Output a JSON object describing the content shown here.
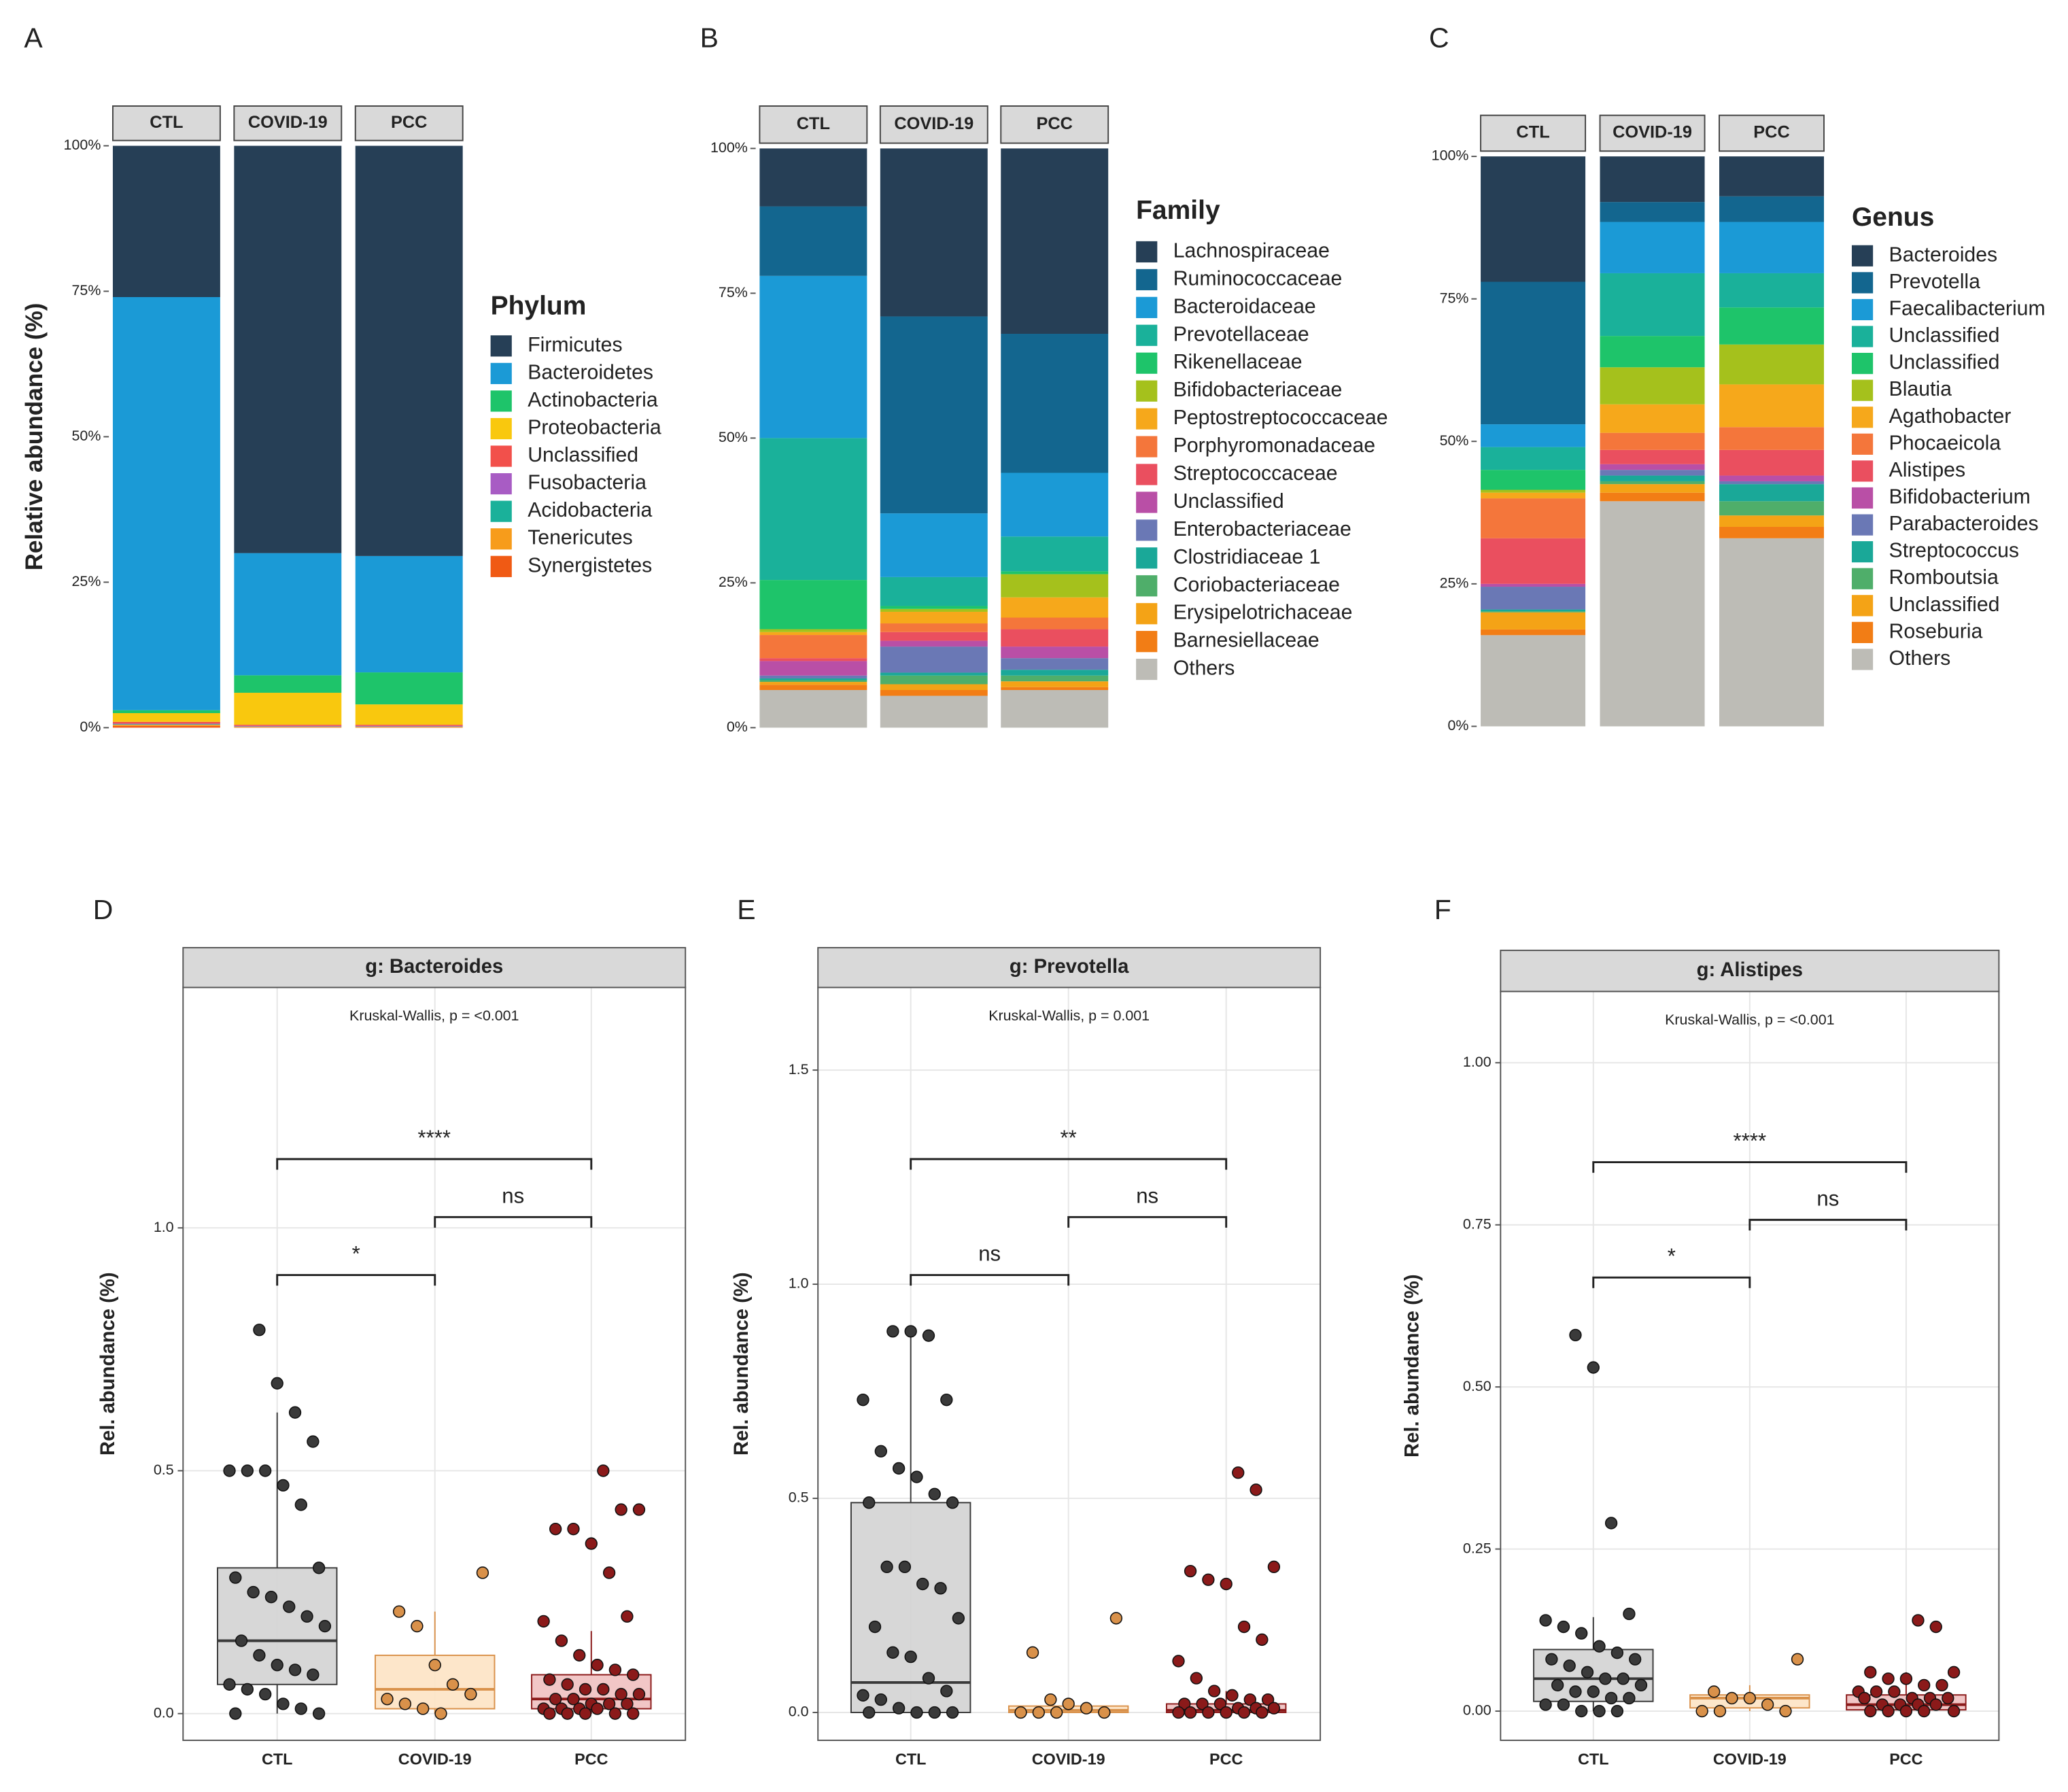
{
  "chart_data": [
    {
      "type": "stacked_bar",
      "label": "A",
      "ylabel": "Relative abundance (%)",
      "legend_title": "Phylum",
      "categories": [
        "CTL",
        "COVID-19",
        "PCC"
      ],
      "ylim": [
        0,
        100
      ],
      "yticks": [
        {
          "value": 0,
          "label": "0%"
        },
        {
          "value": 25,
          "label": "25%"
        },
        {
          "value": 50,
          "label": "50%"
        },
        {
          "value": 75,
          "label": "75%"
        },
        {
          "value": 100,
          "label": "100%"
        }
      ],
      "series": [
        {
          "name": "Firmicutes",
          "color": "#263f56",
          "values": [
            26,
            70,
            70.5
          ]
        },
        {
          "name": "Bacteroidetes",
          "color": "#1b9ad6",
          "values": [
            71,
            21,
            20
          ]
        },
        {
          "name": "Actinobacteria",
          "color": "#1ec46a",
          "values": [
            0.5,
            3,
            5.5
          ]
        },
        {
          "name": "Proteobacteria",
          "color": "#f9c80e",
          "values": [
            1.5,
            5.5,
            3.5
          ]
        },
        {
          "name": "Unclassified",
          "color": "#f2504b",
          "values": [
            0.3,
            0.2,
            0.2
          ]
        },
        {
          "name": "Fusobacteria",
          "color": "#a85cc4",
          "values": [
            0.1,
            0.1,
            0.1
          ]
        },
        {
          "name": "Acidobacteria",
          "color": "#1ab19a",
          "values": [
            0.1,
            0.05,
            0.05
          ]
        },
        {
          "name": "Tenericutes",
          "color": "#f79c1b",
          "values": [
            0.2,
            0.1,
            0.1
          ]
        },
        {
          "name": "Synergistetes",
          "color": "#f05a14",
          "values": [
            0.3,
            0.05,
            0.05
          ]
        }
      ]
    },
    {
      "type": "stacked_bar",
      "label": "B",
      "legend_title": "Family",
      "categories": [
        "CTL",
        "COVID-19",
        "PCC"
      ],
      "ylim": [
        0,
        100
      ],
      "yticks": [
        {
          "value": 0,
          "label": "0%"
        },
        {
          "value": 25,
          "label": "25%"
        },
        {
          "value": 50,
          "label": "50%"
        },
        {
          "value": 75,
          "label": "75%"
        },
        {
          "value": 100,
          "label": "100%"
        }
      ],
      "series": [
        {
          "name": "Lachnospiraceae",
          "color": "#263f56",
          "values": [
            10,
            29,
            32
          ]
        },
        {
          "name": "Ruminococcaceae",
          "color": "#13668f",
          "values": [
            12,
            34,
            24
          ]
        },
        {
          "name": "Bacteroidaceae",
          "color": "#1b9ad6",
          "values": [
            28,
            11,
            11
          ]
        },
        {
          "name": "Prevotellaceae",
          "color": "#1ab19a",
          "values": [
            24.5,
            5,
            6
          ]
        },
        {
          "name": "Rikenellaceae",
          "color": "#1ec46a",
          "values": [
            8.5,
            0.5,
            0.5
          ]
        },
        {
          "name": "Bifidobacteriaceae",
          "color": "#a5c11c",
          "values": [
            0.5,
            0.5,
            4
          ]
        },
        {
          "name": "Peptostreptococcaceae",
          "color": "#f6a81b",
          "values": [
            0.5,
            2,
            3.5
          ]
        },
        {
          "name": "Porphyromonadaceae",
          "color": "#f4763b",
          "values": [
            4,
            1.5,
            2
          ]
        },
        {
          "name": "Streptococcaceae",
          "color": "#ea4f5f",
          "values": [
            0.5,
            1.5,
            3
          ]
        },
        {
          "name": "Unclassified",
          "color": "#b94fa6",
          "values": [
            2.5,
            1,
            2
          ]
        },
        {
          "name": "Enterobacteriaceae",
          "color": "#6a78b5",
          "values": [
            0.5,
            4.5,
            2
          ]
        },
        {
          "name": "Clostridiaceae 1",
          "color": "#1aa898",
          "values": [
            0.3,
            0.5,
            1
          ]
        },
        {
          "name": "Coriobacteriaceae",
          "color": "#4fae6a",
          "values": [
            0.3,
            1.5,
            1
          ]
        },
        {
          "name": "Erysipelotrichaceae",
          "color": "#f4a316",
          "values": [
            0.5,
            1,
            1
          ]
        },
        {
          "name": "Barnesiellaceae",
          "color": "#f27d15",
          "values": [
            0.9,
            1,
            0.5
          ]
        },
        {
          "name": "Others",
          "color": "#bdbcb6",
          "values": [
            6.5,
            5.5,
            6.5
          ]
        }
      ]
    },
    {
      "type": "stacked_bar",
      "label": "C",
      "legend_title": "Genus",
      "categories": [
        "CTL",
        "COVID-19",
        "PCC"
      ],
      "ylim": [
        0,
        100
      ],
      "yticks": [
        {
          "value": 0,
          "label": "0%"
        },
        {
          "value": 25,
          "label": "25%"
        },
        {
          "value": 50,
          "label": "50%"
        },
        {
          "value": 75,
          "label": "75%"
        },
        {
          "value": 100,
          "label": "100%"
        }
      ],
      "series": [
        {
          "name": "Bacteroides",
          "color": "#263f56",
          "values": [
            22,
            8,
            7
          ]
        },
        {
          "name": "Prevotella",
          "color": "#13668f",
          "values": [
            25,
            3.5,
            4.5
          ]
        },
        {
          "name": "Faecalibacterium",
          "color": "#1b9ad6",
          "values": [
            4,
            9,
            9
          ]
        },
        {
          "name": "Unclassified",
          "color": "#1ab19a",
          "values": [
            4,
            11,
            6
          ]
        },
        {
          "name": "Unclassified",
          "color": "#1ec46a",
          "values": [
            3.5,
            5.5,
            6.5
          ]
        },
        {
          "name": "Blautia",
          "color": "#a5c11c",
          "values": [
            0.5,
            6.5,
            7
          ]
        },
        {
          "name": "Agathobacter",
          "color": "#f6a81b",
          "values": [
            1,
            5,
            7.5
          ]
        },
        {
          "name": "Phocaeicola",
          "color": "#f4763b",
          "values": [
            7,
            3,
            4
          ]
        },
        {
          "name": "Alistipes",
          "color": "#ea4f5f",
          "values": [
            8,
            2.5,
            4.5
          ]
        },
        {
          "name": "Bifidobacterium",
          "color": "#b94fa6",
          "values": [
            0.5,
            1,
            1
          ]
        },
        {
          "name": "Parabacteroides",
          "color": "#6a78b5",
          "values": [
            4,
            1,
            0.5
          ]
        },
        {
          "name": "Streptococcus",
          "color": "#1aa898",
          "values": [
            0.3,
            1,
            3
          ]
        },
        {
          "name": "Romboutsia",
          "color": "#4fae6a",
          "values": [
            0.2,
            0.5,
            2.5
          ]
        },
        {
          "name": "Unclassified",
          "color": "#f4a316",
          "values": [
            3,
            1.5,
            2
          ]
        },
        {
          "name": "Roseburia",
          "color": "#f27d15",
          "values": [
            1,
            1.5,
            2
          ]
        },
        {
          "name": "Others",
          "color": "#bdbcb6",
          "values": [
            16,
            39.5,
            33
          ]
        }
      ]
    },
    {
      "type": "box",
      "label": "D",
      "title": "g: Bacteroides",
      "subtitle": "Kruskal-Wallis, p = <0.001",
      "ylabel": "Rel. abundance (%)",
      "categories": [
        "CTL",
        "COVID-19",
        "PCC"
      ],
      "colors": [
        "#3a3a3a",
        "#d9914a",
        "#8b1a1a"
      ],
      "fills": [
        "#d3d3d3",
        "#fde3c4",
        "#f0c0c0"
      ],
      "ylim": [
        -0.055,
        1.495
      ],
      "yticks": [
        {
          "value": 0,
          "label": "0.0"
        },
        0.5,
        {
          "value": 1,
          "label": "1.0"
        }
      ],
      "boxes": [
        {
          "min": 0,
          "q1": 0.06,
          "median": 0.15,
          "q3": 0.3,
          "max": 0.62
        },
        {
          "min": 0,
          "q1": 0.01,
          "median": 0.05,
          "q3": 0.12,
          "max": 0.21
        },
        {
          "min": 0,
          "q1": 0.01,
          "median": 0.03,
          "q3": 0.08,
          "max": 0.17
        }
      ],
      "points": [
        [
          0.79,
          0.68,
          0.62,
          0.56,
          0.5,
          0.5,
          0.5,
          0.47,
          0.43,
          0.3,
          0.28,
          0.25,
          0.24,
          0.22,
          0.2,
          0.18,
          0.15,
          0.12,
          0.1,
          0.09,
          0.08,
          0.06,
          0.05,
          0.04,
          0.02,
          0.01,
          0,
          0
        ],
        [
          0.29,
          0.21,
          0.18,
          0.1,
          0.06,
          0.04,
          0.03,
          0.02,
          0.01,
          0
        ],
        [
          0.5,
          0.42,
          0.42,
          0.38,
          0.38,
          0.35,
          0.29,
          0.2,
          0.19,
          0.15,
          0.12,
          0.1,
          0.09,
          0.08,
          0.07,
          0.06,
          0.05,
          0.05,
          0.04,
          0.04,
          0.03,
          0.03,
          0.02,
          0.02,
          0.02,
          0.01,
          0.01,
          0.01,
          0.01,
          0,
          0,
          0,
          0,
          0
        ]
      ],
      "comparisons": [
        {
          "groups": [
            "CTL",
            "COVID-19"
          ],
          "label": "*"
        },
        {
          "groups": [
            "COVID-19",
            "PCC"
          ],
          "label": "ns"
        },
        {
          "groups": [
            "CTL",
            "PCC"
          ],
          "label": "****"
        }
      ]
    },
    {
      "type": "box",
      "label": "E",
      "title": "g: Prevotella",
      "subtitle": "Kruskal-Wallis, p = 0.001",
      "ylabel": "Rel. abundance (%)",
      "categories": [
        "CTL",
        "COVID-19",
        "PCC"
      ],
      "colors": [
        "#3a3a3a",
        "#d9914a",
        "#8b1a1a"
      ],
      "fills": [
        "#d3d3d3",
        "#fde3c4",
        "#f0c0c0"
      ],
      "ylim": [
        -0.065,
        1.693
      ],
      "yticks": [
        {
          "value": 0,
          "label": "0.0"
        },
        0.5,
        {
          "value": 1,
          "label": "1.0"
        },
        1.5
      ],
      "boxes": [
        {
          "min": 0,
          "q1": 0,
          "median": 0.07,
          "q3": 0.49,
          "max": 0.89
        },
        {
          "min": 0,
          "q1": 0,
          "median": 0.005,
          "q3": 0.015,
          "max": 0.03
        },
        {
          "min": 0,
          "q1": 0,
          "median": 0.005,
          "q3": 0.02,
          "max": 0.05
        }
      ],
      "points": [
        [
          0.89,
          0.89,
          0.88,
          0.73,
          0.73,
          0.61,
          0.57,
          0.55,
          0.51,
          0.49,
          0.49,
          0.34,
          0.34,
          0.3,
          0.29,
          0.22,
          0.2,
          0.14,
          0.13,
          0.08,
          0.05,
          0.04,
          0.03,
          0.01,
          0,
          0,
          0,
          0
        ],
        [
          0.22,
          0.14,
          0.03,
          0.02,
          0.01,
          0,
          0,
          0,
          0
        ],
        [
          0.56,
          0.52,
          0.34,
          0.33,
          0.31,
          0.3,
          0.2,
          0.17,
          0.12,
          0.08,
          0.05,
          0.04,
          0.03,
          0.03,
          0.02,
          0.02,
          0.02,
          0.01,
          0.01,
          0.01,
          0,
          0,
          0,
          0,
          0,
          0
        ]
      ],
      "comparisons": [
        {
          "groups": [
            "CTL",
            "COVID-19"
          ],
          "label": "ns"
        },
        {
          "groups": [
            "COVID-19",
            "PCC"
          ],
          "label": "ns"
        },
        {
          "groups": [
            "CTL",
            "PCC"
          ],
          "label": "**"
        }
      ]
    },
    {
      "type": "box",
      "label": "F",
      "title": "g: Alistipes",
      "subtitle": "Kruskal-Wallis, p = <0.001",
      "ylabel": "Rel. abundance (%)",
      "categories": [
        "CTL",
        "COVID-19",
        "PCC"
      ],
      "colors": [
        "#3a3a3a",
        "#d9914a",
        "#8b1a1a"
      ],
      "fills": [
        "#d3d3d3",
        "#fde3c4",
        "#f0c0c0"
      ],
      "ylim": [
        -0.045,
        1.11
      ],
      "yticks": [
        {
          "value": 0,
          "label": "0.00"
        },
        0.25,
        {
          "value": 0.5,
          "label": "0.50"
        },
        0.75,
        {
          "value": 1,
          "label": "1.00"
        }
      ],
      "boxes": [
        {
          "min": 0,
          "q1": 0.015,
          "median": 0.05,
          "q3": 0.095,
          "max": 0.145
        },
        {
          "min": 0,
          "q1": 0.005,
          "median": 0.02,
          "q3": 0.025,
          "max": 0.04
        },
        {
          "min": 0,
          "q1": 0.002,
          "median": 0.01,
          "q3": 0.025,
          "max": 0.06
        }
      ],
      "points": [
        [
          0.58,
          0.53,
          0.29,
          0.15,
          0.14,
          0.13,
          0.12,
          0.1,
          0.09,
          0.08,
          0.08,
          0.07,
          0.06,
          0.05,
          0.05,
          0.04,
          0.04,
          0.03,
          0.03,
          0.02,
          0.02,
          0.01,
          0.01,
          0,
          0,
          0
        ],
        [
          0.08,
          0.03,
          0.02,
          0.02,
          0.01,
          0,
          0,
          0
        ],
        [
          0.14,
          0.13,
          0.06,
          0.06,
          0.05,
          0.05,
          0.04,
          0.04,
          0.03,
          0.03,
          0.03,
          0.02,
          0.02,
          0.02,
          0.02,
          0.01,
          0.01,
          0.01,
          0.01,
          0,
          0,
          0,
          0,
          0
        ]
      ],
      "comparisons": [
        {
          "groups": [
            "CTL",
            "COVID-19"
          ],
          "label": "*"
        },
        {
          "groups": [
            "COVID-19",
            "PCC"
          ],
          "label": "ns"
        },
        {
          "groups": [
            "CTL",
            "PCC"
          ],
          "label": "****"
        }
      ]
    }
  ]
}
